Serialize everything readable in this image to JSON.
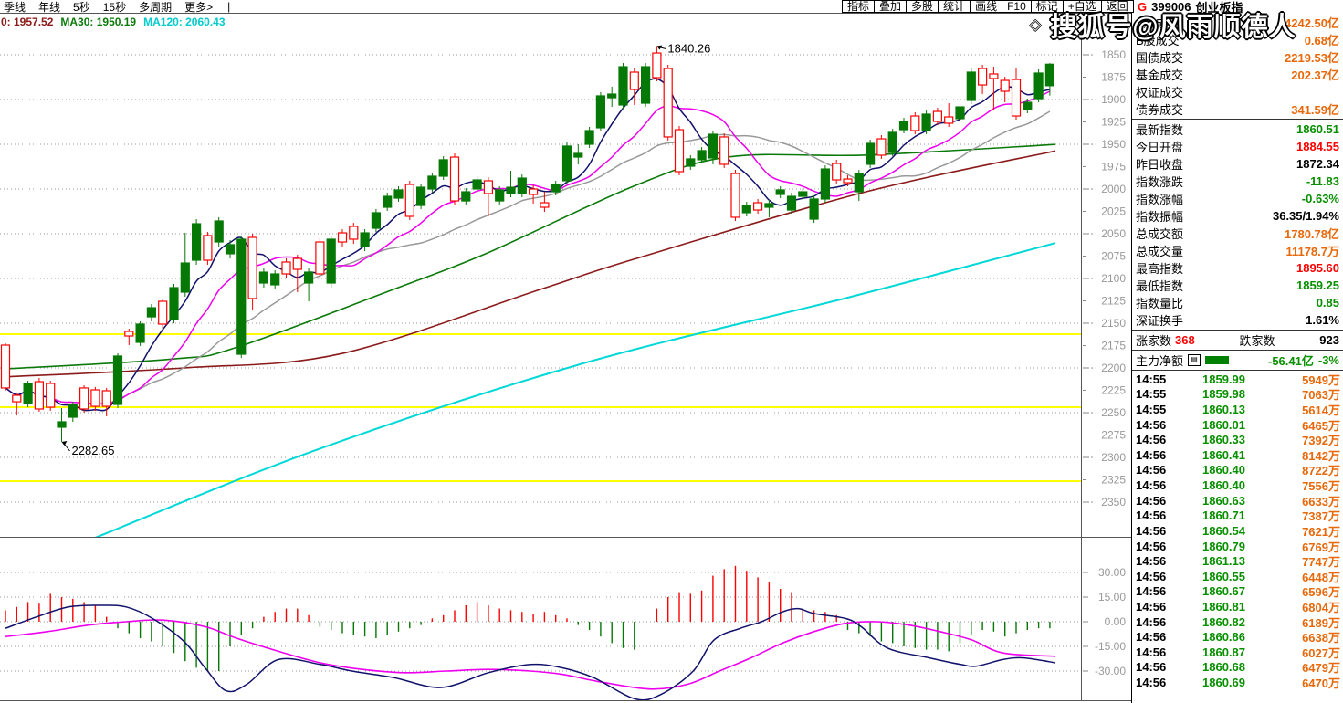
{
  "toolbar": {
    "left_items": [
      "季线",
      "年线",
      "5秒",
      "15秒",
      "多周期",
      "更多>"
    ],
    "menu_separator": "|",
    "right_buttons": [
      "指标",
      "叠加",
      "多股",
      "统计",
      "画线",
      "F10",
      "标记",
      "+自选",
      "返回"
    ],
    "market_flag": "G",
    "symbol_code": "399006",
    "symbol_name": "创业板指"
  },
  "legend": {
    "items": [
      {
        "text": "0: 1957.52",
        "color": "#8b1a1a"
      },
      {
        "text": "MA30: 1950.19",
        "color": "#0b7a0b"
      },
      {
        "text": "MA120: 2060.43",
        "color": "#00cccc"
      }
    ]
  },
  "watermark": {
    "diamond": "◇",
    "text": "搜狐号@风雨顺德人"
  },
  "info_panel": {
    "volume_rows": [
      {
        "label": "A股成交",
        "value": "4242.50亿",
        "color": "orange"
      },
      {
        "label": "B股成交",
        "value": "0.68亿",
        "color": "orange"
      },
      {
        "label": "国债成交",
        "value": "2219.53亿",
        "color": "orange"
      },
      {
        "label": "基金成交",
        "value": "202.37亿",
        "color": "orange"
      },
      {
        "label": "权证成交",
        "value": "",
        "color": "orange"
      },
      {
        "label": "债券成交",
        "value": "341.59亿",
        "color": "orange"
      }
    ],
    "index_rows": [
      {
        "label": "最新指数",
        "value": "1860.51",
        "color": "green"
      },
      {
        "label": "今日开盘",
        "value": "1884.55",
        "color": "red"
      },
      {
        "label": "昨日收盘",
        "value": "1872.34",
        "color": "black"
      },
      {
        "label": "指数涨跌",
        "value": "-11.83",
        "color": "green"
      },
      {
        "label": "指数涨幅",
        "value": "-0.63%",
        "color": "green"
      },
      {
        "label": "指数振幅",
        "value": "36.35/1.94%",
        "color": "black"
      },
      {
        "label": "总成交额",
        "value": "1780.78亿",
        "color": "orange"
      },
      {
        "label": "总成交量",
        "value": "11178.7万",
        "color": "orange"
      },
      {
        "label": "最高指数",
        "value": "1895.60",
        "color": "red"
      },
      {
        "label": "最低指数",
        "value": "1859.25",
        "color": "green"
      },
      {
        "label": "指数量比",
        "value": "0.85",
        "color": "green"
      },
      {
        "label": "深证换手",
        "value": "1.61%",
        "color": "black"
      }
    ],
    "breadth": {
      "up_label": "涨家数",
      "up_value": "368",
      "down_label": "跌家数",
      "down_value": "923"
    },
    "main_force": {
      "label": "主力净额",
      "icon": "▤",
      "value": "-56.41亿",
      "pct": "-3%"
    },
    "ticks": [
      {
        "time": "14:55",
        "price": "1859.99",
        "vol": "5949万"
      },
      {
        "time": "14:55",
        "price": "1859.98",
        "vol": "7063万"
      },
      {
        "time": "14:55",
        "price": "1860.13",
        "vol": "5614万"
      },
      {
        "time": "14:56",
        "price": "1860.01",
        "vol": "6465万"
      },
      {
        "time": "14:56",
        "price": "1860.33",
        "vol": "7392万"
      },
      {
        "time": "14:56",
        "price": "1860.41",
        "vol": "8142万"
      },
      {
        "time": "14:56",
        "price": "1860.40",
        "vol": "8722万"
      },
      {
        "time": "14:56",
        "price": "1860.40",
        "vol": "7556万"
      },
      {
        "time": "14:56",
        "price": "1860.63",
        "vol": "6633万"
      },
      {
        "time": "14:56",
        "price": "1860.71",
        "vol": "7387万"
      },
      {
        "time": "14:56",
        "price": "1860.54",
        "vol": "7621万"
      },
      {
        "time": "14:56",
        "price": "1860.79",
        "vol": "6769万"
      },
      {
        "time": "14:56",
        "price": "1861.13",
        "vol": "7747万"
      },
      {
        "time": "14:56",
        "price": "1860.55",
        "vol": "6448万"
      },
      {
        "time": "14:56",
        "price": "1860.67",
        "vol": "6596万"
      },
      {
        "time": "14:56",
        "price": "1860.81",
        "vol": "6804万"
      },
      {
        "time": "14:56",
        "price": "1860.82",
        "vol": "6189万"
      },
      {
        "time": "14:56",
        "price": "1860.86",
        "vol": "6638万"
      },
      {
        "time": "14:56",
        "price": "1860.87",
        "vol": "6027万"
      },
      {
        "time": "14:56",
        "price": "1860.68",
        "vol": "6479万"
      },
      {
        "time": "14:56",
        "price": "1860.69",
        "vol": "6470万"
      }
    ]
  },
  "chart_data": {
    "type": "candlestick+macd",
    "note": "K-line chart of ChiNext index 399006 drawn with reversed (inverted) price axis: smaller prices at top.",
    "price_axis": {
      "min": 1850,
      "max": 2350,
      "tick_step": 25,
      "grid_step": 50,
      "inverted": true
    },
    "macd_axis": {
      "labels": [
        "30.00",
        "15.00",
        "0.00",
        "-15.00",
        "-30.00"
      ],
      "values": [
        30,
        15,
        0,
        -15,
        -30
      ]
    },
    "yellow_lines": [
      2162.2,
      2243.9,
      2326.5
    ],
    "annotations": [
      {
        "text": "1840.26",
        "price": 1840.26,
        "candle_index": 58
      },
      {
        "text": "2282.65",
        "price": 2282.65,
        "candle_index": 5
      }
    ],
    "candles_ohlc": [
      [
        2174.5,
        2225.5,
        2172.4,
        2222.4
      ],
      [
        2230.6,
        2253.1,
        2227.6,
        2237.8
      ],
      [
        2239.8,
        2243.9,
        2214.3,
        2217.3
      ],
      [
        2215.3,
        2249.0,
        2211.2,
        2245.9
      ],
      [
        2217.3,
        2248.0,
        2214.3,
        2243.9
      ],
      [
        2266.3,
        2282.65,
        2244.9,
        2260.2
      ],
      [
        2255.1,
        2260.2,
        2237.8,
        2240.8
      ],
      [
        2222.4,
        2250.0,
        2219.4,
        2245.9
      ],
      [
        2224.5,
        2248.0,
        2221.4,
        2242.9
      ],
      [
        2225.5,
        2254.1,
        2222.4,
        2242.9
      ],
      [
        2240.8,
        2244.9,
        2183.7,
        2186.7
      ],
      [
        2159.2,
        2174.5,
        2156.1,
        2164.3
      ],
      [
        2171.4,
        2175.5,
        2148.0,
        2151.0
      ],
      [
        2142.9,
        2148.0,
        2128.6,
        2132.7
      ],
      [
        2125.5,
        2156.1,
        2122.4,
        2151.0
      ],
      [
        2145.9,
        2150.0,
        2106.1,
        2110.2
      ],
      [
        2115.3,
        2120.4,
        2049.0,
        2082.7
      ],
      [
        2079.6,
        2084.7,
        2033.7,
        2038.8
      ],
      [
        2052.0,
        2084.7,
        2048.0,
        2079.6
      ],
      [
        2059.2,
        2064.3,
        2031.6,
        2035.7
      ],
      [
        2072.4,
        2077.6,
        2057.1,
        2062.2
      ],
      [
        2184.7,
        2188.8,
        2052.0,
        2056.1
      ],
      [
        2054.1,
        2135.7,
        2050.0,
        2122.4
      ],
      [
        2105.1,
        2110.2,
        2088.8,
        2092.9
      ],
      [
        2107.1,
        2112.2,
        2090.8,
        2094.9
      ],
      [
        2081.6,
        2100.0,
        2077.6,
        2094.9
      ],
      [
        2077.6,
        2115.3,
        2073.5,
        2089.8
      ],
      [
        2105.1,
        2125.5,
        2088.8,
        2092.9
      ],
      [
        2059.2,
        2100.0,
        2055.1,
        2094.9
      ],
      [
        2105.1,
        2110.2,
        2052.0,
        2056.1
      ],
      [
        2049.0,
        2064.3,
        2044.9,
        2059.2
      ],
      [
        2041.8,
        2061.2,
        2037.8,
        2056.1
      ],
      [
        2064.3,
        2069.4,
        2044.9,
        2049.0
      ],
      [
        2043.9,
        2048.0,
        2022.4,
        2026.5
      ],
      [
        2020.4,
        2024.5,
        2004.1,
        2008.2
      ],
      [
        2010.2,
        2014.3,
        1996.9,
        2001.0
      ],
      [
        1994.9,
        2034.7,
        1990.8,
        2030.6
      ],
      [
        2018.4,
        2022.4,
        1993.9,
        1998.0
      ],
      [
        2000.0,
        2004.1,
        1981.6,
        1985.7
      ],
      [
        1985.7,
        1989.8,
        1963.3,
        1967.3
      ],
      [
        1964.3,
        2017.3,
        1960.2,
        2013.3
      ],
      [
        2013.3,
        2017.3,
        1999.0,
        2003.1
      ],
      [
        2000.0,
        2004.1,
        1985.7,
        1989.8
      ],
      [
        1990.8,
        2030.6,
        1986.7,
        2005.1
      ],
      [
        2013.3,
        2017.3,
        1996.9,
        2001.0
      ],
      [
        2005.1,
        2009.2,
        1979.6,
        1998.0
      ],
      [
        2005.1,
        2009.2,
        1983.7,
        1987.8
      ],
      [
        2000.0,
        2016.3,
        1995.9,
        2006.1
      ],
      [
        2015.3,
        2025.5,
        2003.1,
        2020.4
      ],
      [
        2003.1,
        2007.1,
        1990.8,
        1994.9
      ],
      [
        1990.8,
        1994.9,
        1948.0,
        1952.0
      ],
      [
        1964.3,
        1972.4,
        1950.0,
        1960.2
      ],
      [
        1950.0,
        1954.1,
        1930.6,
        1934.7
      ],
      [
        1931.6,
        1935.7,
        1891.8,
        1895.9
      ],
      [
        1898.0,
        1908.2,
        1885.7,
        1893.9
      ],
      [
        1906.1,
        1910.2,
        1859.2,
        1863.3
      ],
      [
        1869.4,
        1906.1,
        1865.3,
        1888.8
      ],
      [
        1904.1,
        1908.2,
        1859.2,
        1863.3
      ],
      [
        1848.0,
        1879.6,
        1840.26,
        1875.5
      ],
      [
        1865.3,
        1945.9,
        1861.2,
        1941.8
      ],
      [
        1933.7,
        1984.7,
        1929.6,
        1980.6
      ],
      [
        1974.5,
        1978.6,
        1962.2,
        1966.3
      ],
      [
        1967.3,
        1971.4,
        1953.1,
        1957.1
      ],
      [
        1965.3,
        1972.4,
        1934.7,
        1938.8
      ],
      [
        1941.8,
        1976.5,
        1937.8,
        1972.4
      ],
      [
        1982.7,
        2035.7,
        1978.6,
        2031.6
      ],
      [
        2026.5,
        2030.6,
        2014.3,
        2018.4
      ],
      [
        2015.3,
        2027.6,
        2011.2,
        2023.5
      ],
      [
        2020.4,
        2031.6,
        2012.2,
        2016.3
      ],
      [
        2006.1,
        2010.2,
        1996.9,
        2001.0
      ],
      [
        2023.5,
        2027.6,
        2004.1,
        2008.2
      ],
      [
        2008.2,
        2012.2,
        1999.0,
        2003.1
      ],
      [
        2033.7,
        2037.8,
        2007.1,
        2011.2
      ],
      [
        2011.2,
        2015.3,
        1973.5,
        1977.6
      ],
      [
        1971.4,
        1993.9,
        1967.3,
        1989.8
      ],
      [
        1988.8,
        1996.9,
        1984.7,
        1992.9
      ],
      [
        2003.1,
        2013.3,
        1978.6,
        1982.7
      ],
      [
        1972.4,
        1976.5,
        1944.9,
        1949.0
      ],
      [
        1943.9,
        1966.3,
        1939.8,
        1962.2
      ],
      [
        1959.2,
        1963.3,
        1932.7,
        1936.7
      ],
      [
        1933.7,
        1937.8,
        1920.4,
        1924.5
      ],
      [
        1918.4,
        1938.8,
        1914.3,
        1934.7
      ],
      [
        1934.7,
        1938.8,
        1912.2,
        1916.3
      ],
      [
        1913.3,
        1928.6,
        1909.2,
        1924.5
      ],
      [
        1919.4,
        1930.6,
        1904.1,
        1926.5
      ],
      [
        1921.4,
        1925.5,
        1904.1,
        1908.2
      ],
      [
        1901.0,
        1905.1,
        1865.3,
        1869.4
      ],
      [
        1865.3,
        1893.9,
        1861.2,
        1883.7
      ],
      [
        1871.4,
        1911.2,
        1863.3,
        1876.5
      ],
      [
        1878.6,
        1903.1,
        1874.5,
        1890.8
      ],
      [
        1877.6,
        1922.4,
        1865.3,
        1918.4
      ],
      [
        1911.2,
        1915.3,
        1899.0,
        1903.1
      ],
      [
        1899.0,
        1903.1,
        1866.3,
        1870.4
      ],
      [
        1884.55,
        1895.6,
        1859.25,
        1860.51
      ]
    ],
    "ma_computed_windows": {
      "navy": 5,
      "magenta": 10,
      "gray": 18
    },
    "ma_overlays": {
      "maroon_ma10": [
        [
          0,
          2210
        ],
        [
          0.17,
          2200
        ],
        [
          0.32,
          2184
        ],
        [
          0.51,
          2112
        ],
        [
          0.6,
          2078
        ],
        [
          0.82,
          2003
        ],
        [
          1.0,
          1957.5
        ]
      ],
      "green_ma30": [
        [
          0,
          2201
        ],
        [
          0.16,
          2190
        ],
        [
          0.22,
          2177
        ],
        [
          0.37,
          2112
        ],
        [
          0.46,
          2071
        ],
        [
          0.6,
          1996
        ],
        [
          0.69,
          1964
        ],
        [
          0.82,
          1962
        ],
        [
          1.0,
          1950.2
        ]
      ],
      "cyan_ma120": [
        [
          0.085,
          2390
        ],
        [
          0.3,
          2290
        ],
        [
          0.55,
          2195
        ],
        [
          0.8,
          2122
        ],
        [
          1.0,
          2060.4
        ]
      ]
    },
    "macd": {
      "histogram": [
        7,
        9,
        12,
        11,
        17,
        15,
        14,
        12,
        10,
        3,
        -4,
        -7,
        -10,
        -12,
        -15,
        -19,
        -24,
        -28,
        -30,
        -30,
        -15,
        -8,
        -4,
        3,
        6,
        8,
        8,
        4,
        -3,
        -5,
        -7,
        -8,
        -9,
        -10,
        -8,
        -6,
        -4,
        -2,
        2,
        4,
        7,
        10,
        12,
        10,
        8,
        7,
        6,
        5,
        6,
        4,
        2,
        -2,
        -5,
        -9,
        -13,
        -16,
        -17,
        0,
        8,
        15,
        18,
        17,
        19,
        28,
        32,
        34,
        31,
        27,
        24,
        20,
        18,
        8,
        7,
        6,
        4,
        -5,
        -7,
        -9,
        -12,
        -13,
        -15,
        -16,
        -17,
        -17,
        -18,
        -13,
        -8,
        -5,
        -6,
        -9,
        -7,
        -5,
        -4,
        -4
      ],
      "dif": [
        [
          0,
          -4
        ],
        [
          0.03,
          3
        ],
        [
          0.06,
          9
        ],
        [
          0.09,
          10
        ],
        [
          0.115,
          9
        ],
        [
          0.14,
          2
        ],
        [
          0.17,
          -12
        ],
        [
          0.19,
          -28
        ],
        [
          0.21,
          -42
        ],
        [
          0.23,
          -38
        ],
        [
          0.26,
          -23
        ],
        [
          0.3,
          -26
        ],
        [
          0.33,
          -30
        ],
        [
          0.37,
          -34
        ],
        [
          0.415,
          -40
        ],
        [
          0.46,
          -31
        ],
        [
          0.5,
          -26
        ],
        [
          0.53,
          -28
        ],
        [
          0.56,
          -34
        ],
        [
          0.6,
          -47
        ],
        [
          0.625,
          -44
        ],
        [
          0.655,
          -30
        ],
        [
          0.675,
          -11
        ],
        [
          0.7,
          -4
        ],
        [
          0.72,
          0
        ],
        [
          0.74,
          6
        ],
        [
          0.755,
          8
        ],
        [
          0.77,
          5
        ],
        [
          0.8,
          2
        ],
        [
          0.815,
          -3
        ],
        [
          0.84,
          -16
        ],
        [
          0.88,
          -22
        ],
        [
          0.91,
          -26
        ],
        [
          0.925,
          -27
        ],
        [
          0.95,
          -23
        ],
        [
          0.97,
          -22
        ],
        [
          1.0,
          -25
        ]
      ],
      "dea": [
        [
          0,
          -9
        ],
        [
          0.04,
          -6
        ],
        [
          0.08,
          -2
        ],
        [
          0.115,
          0
        ],
        [
          0.15,
          1
        ],
        [
          0.19,
          -3
        ],
        [
          0.22,
          -10
        ],
        [
          0.26,
          -18
        ],
        [
          0.3,
          -25
        ],
        [
          0.34,
          -29
        ],
        [
          0.38,
          -31
        ],
        [
          0.42,
          -30
        ],
        [
          0.46,
          -29
        ],
        [
          0.5,
          -30
        ],
        [
          0.53,
          -32
        ],
        [
          0.57,
          -37
        ],
        [
          0.615,
          -41
        ],
        [
          0.65,
          -38
        ],
        [
          0.68,
          -30
        ],
        [
          0.71,
          -22
        ],
        [
          0.74,
          -13
        ],
        [
          0.77,
          -6
        ],
        [
          0.8,
          -1
        ],
        [
          0.83,
          0
        ],
        [
          0.86,
          -2
        ],
        [
          0.89,
          -6
        ],
        [
          0.92,
          -11
        ],
        [
          0.95,
          -19
        ],
        [
          1.0,
          -21
        ]
      ]
    }
  },
  "colors": {
    "up_candle": "#ff0000",
    "down_candle": "#067806",
    "ma_navy": "#11116b",
    "ma_magenta": "#ee00ee",
    "ma_gray": "#999999",
    "ma_maroon": "#8b1a1a",
    "ma_green": "#0b7a0b",
    "ma_cyan": "#00d8d8",
    "grid_dotted": "#9a9a9a",
    "yellow_line": "#ffff00",
    "axis_label": "#999999",
    "border": "#555555",
    "text_red": "#ff0000",
    "text_green": "#089000",
    "text_orange": "#e8680a"
  }
}
